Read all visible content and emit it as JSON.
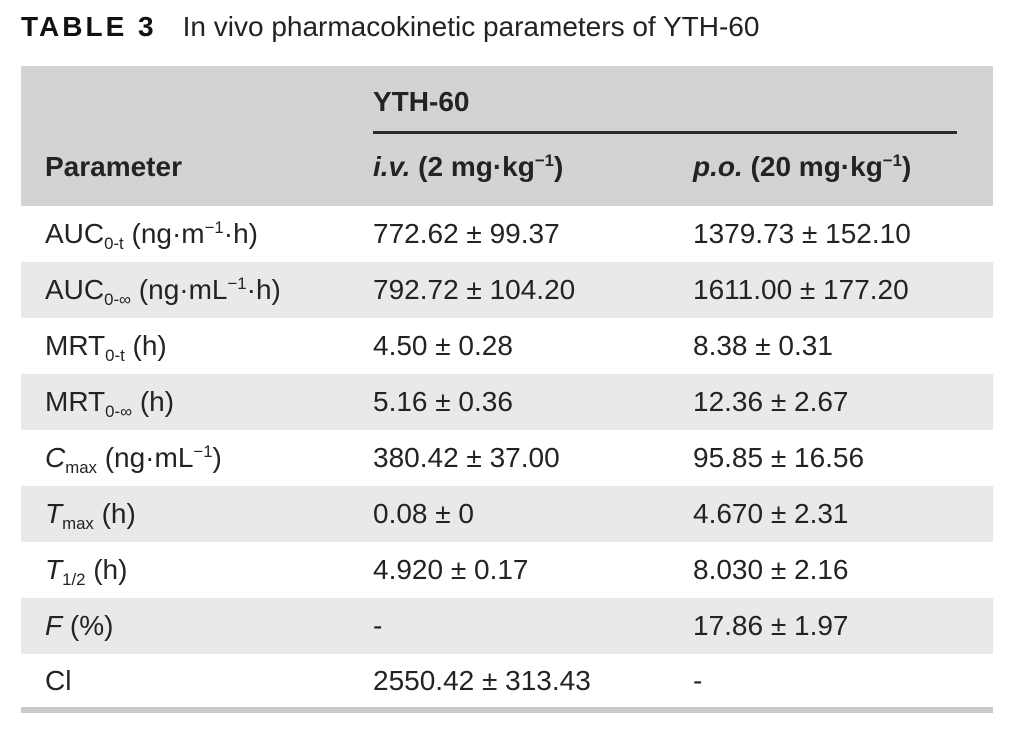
{
  "title": {
    "label": "TABLE 3",
    "text": "In vivo pharmacokinetic parameters of YTH-60"
  },
  "table": {
    "group_header": "YTH-60",
    "columns": {
      "parameter": "Parameter",
      "iv_html": "<i>i.v.</i> (2 mg·kg<sup>−1</sup>)",
      "po_html": "<i>p.o.</i> (20 mg·kg<sup>−1</sup>)"
    },
    "rows": [
      {
        "parameter": "AUC<sub>0-t</sub> (ng·m<sup>−1</sup>·h)",
        "iv": "772.62 ± 99.37",
        "po": "1379.73 ± 152.10"
      },
      {
        "parameter": "AUC<sub>0-∞</sub> (ng·mL<sup>−1</sup>·h)",
        "iv": "792.72 ± 104.20",
        "po": "1611.00 ± 177.20"
      },
      {
        "parameter": "MRT<sub>0-t</sub> (h)",
        "iv": "4.50 ± 0.28",
        "po": "8.38 ± 0.31"
      },
      {
        "parameter": "MRT<sub>0-∞</sub> (h)",
        "iv": "5.16 ± 0.36",
        "po": "12.36 ± 2.67"
      },
      {
        "parameter": "<i>C</i><sub>max</sub> (ng·mL<sup>−1</sup>)",
        "iv": "380.42 ± 37.00",
        "po": "95.85 ± 16.56"
      },
      {
        "parameter": "<i>T</i><sub>max</sub> (h)",
        "iv": "0.08 ± 0",
        "po": "4.670 ± 2.31"
      },
      {
        "parameter": "<i>T</i><sub>1/2</sub> (h)",
        "iv": "4.920 ± 0.17",
        "po": "8.030 ± 2.16"
      },
      {
        "parameter": "<i>F</i> (%)",
        "iv": "-",
        "po": "17.86 ± 1.97"
      },
      {
        "parameter": "Cl",
        "iv": "2550.42 ± 313.43",
        "po": "-"
      }
    ]
  },
  "colors": {
    "header_bg": "#d2d3d4",
    "row_alt_bg": "#e8e9ea",
    "bottom_bar": "#cacbcc",
    "text": "#232323",
    "spanner_rule": "#2b2b2b"
  }
}
